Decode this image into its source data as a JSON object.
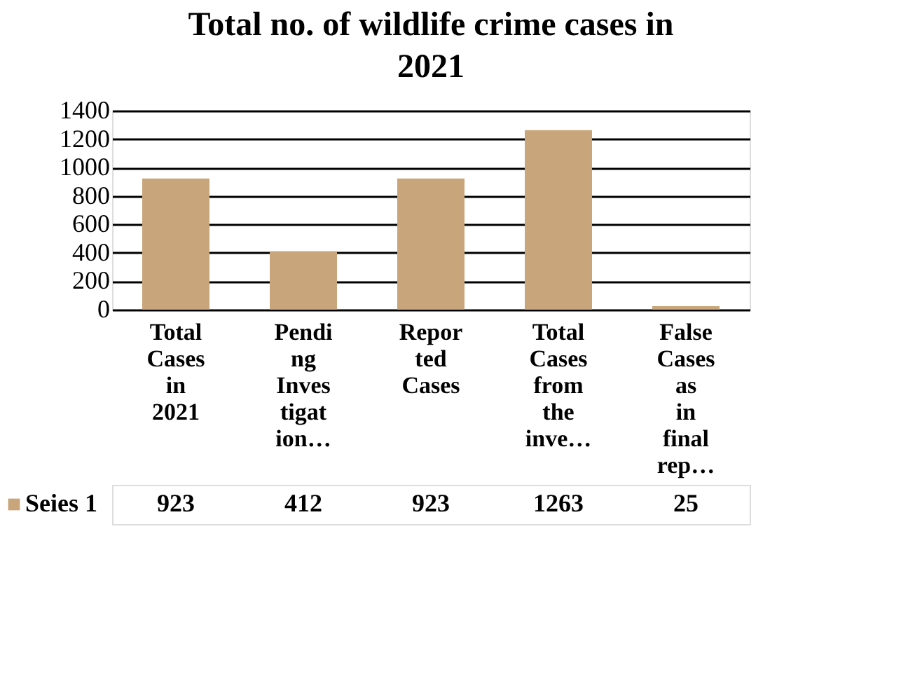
{
  "chart_data": {
    "type": "bar",
    "title": "Total no. of wildlife crime cases in 2021",
    "categories": [
      "Total Cases in 2021",
      "Pending Investigation…",
      "Reported Cases",
      "Total Cases from the inve…",
      "False Cases as in final rep…"
    ],
    "series": [
      {
        "name": "Seies 1",
        "color": "#c8a57a",
        "values": [
          923,
          412,
          923,
          1263,
          25
        ]
      }
    ],
    "ylim": [
      0,
      1400
    ],
    "yticks": [
      0,
      200,
      400,
      600,
      800,
      1000,
      1200,
      1400
    ],
    "grid": "y",
    "data_labels": true,
    "legend": "bottom"
  }
}
